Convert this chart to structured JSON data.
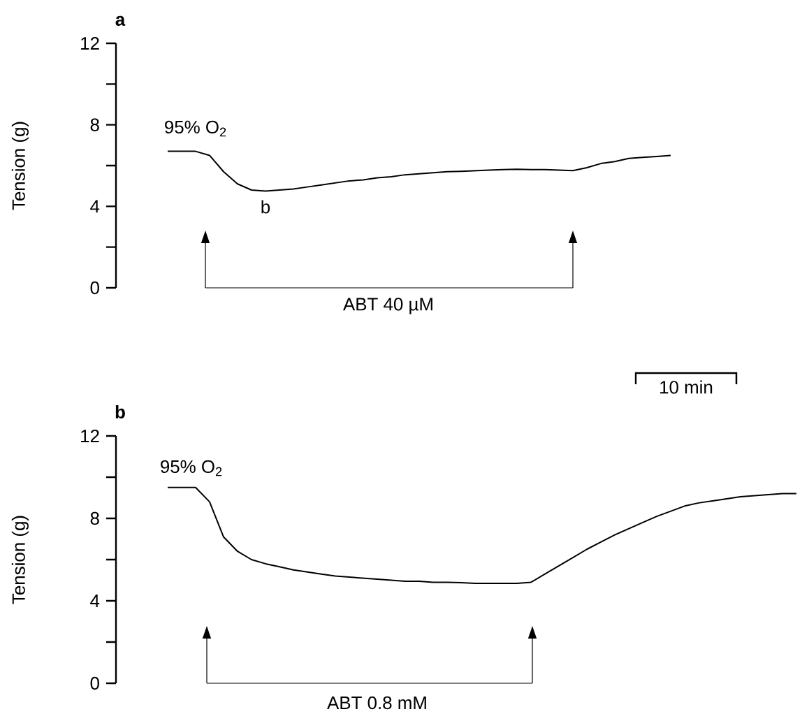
{
  "chart_data": [
    {
      "type": "line",
      "title": "a",
      "ylabel": "Tension  (g)",
      "color": "#000000",
      "tick_labels": "y",
      "ylim": [
        0,
        12
      ],
      "yticks": [
        0,
        4,
        8,
        12
      ],
      "categories": [
        null,
        null,
        null,
        null,
        null,
        null,
        null,
        null,
        null,
        null,
        null,
        null,
        null,
        null,
        null,
        null,
        null,
        null,
        null,
        null,
        null,
        null,
        null,
        null,
        null,
        null,
        null,
        null,
        null,
        null,
        null,
        null,
        null,
        null,
        null,
        null,
        null
      ],
      "values": [
        6.7,
        6.7,
        6.7,
        6.5,
        5.7,
        5.1,
        4.8,
        4.75,
        4.8,
        4.85,
        4.95,
        5.05,
        5.15,
        5.25,
        5.3,
        5.4,
        5.45,
        5.55,
        5.6,
        5.65,
        5.7,
        5.72,
        5.75,
        5.78,
        5.8,
        5.82,
        5.8,
        5.8,
        5.78,
        5.75,
        5.9,
        6.1,
        6.2,
        6.35,
        6.4,
        6.45,
        6.5
      ],
      "annotations": [
        "95% O$_{2}$",
        "b",
        "ABT 40 µM",
        "10 min"
      ]
    },
    {
      "type": "line",
      "title": "b",
      "ylabel": "Tension  (g)",
      "color": "#000000",
      "tick_labels": "y",
      "ylim": [
        0,
        12
      ],
      "yticks": [
        0,
        4,
        8,
        12
      ],
      "categories": [
        null,
        null,
        null,
        null,
        null,
        null,
        null,
        null,
        null,
        null,
        null,
        null,
        null,
        null,
        null,
        null,
        null,
        null,
        null,
        null,
        null,
        null,
        null,
        null,
        null,
        null,
        null,
        null,
        null,
        null,
        null,
        null,
        null,
        null,
        null,
        null,
        null,
        null,
        null,
        null,
        null,
        null,
        null,
        null,
        null,
        null
      ],
      "values": [
        9.5,
        9.5,
        9.5,
        8.8,
        7.1,
        6.4,
        6.0,
        5.8,
        5.65,
        5.5,
        5.4,
        5.3,
        5.2,
        5.15,
        5.1,
        5.05,
        5.0,
        4.95,
        4.95,
        4.9,
        4.9,
        4.88,
        4.85,
        4.85,
        4.85,
        4.85,
        4.9,
        5.3,
        5.7,
        6.1,
        6.5,
        6.85,
        7.2,
        7.5,
        7.8,
        8.1,
        8.35,
        8.6,
        8.75,
        8.85,
        8.95,
        9.05,
        9.1,
        9.15,
        9.2,
        9.2
      ],
      "annotations": [
        "95% O$_{2}$",
        "ABT 0.8 mM"
      ]
    }
  ]
}
